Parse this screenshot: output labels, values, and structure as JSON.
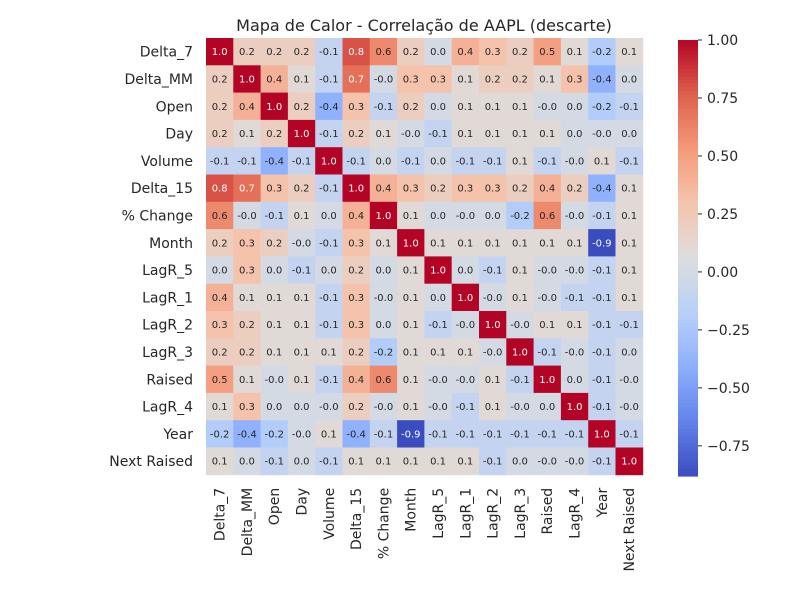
{
  "chart_data": {
    "type": "heatmap",
    "title": "Mapa de Calor - Correlação de AAPL (descarte)",
    "xlabel": "",
    "ylabel": "",
    "colormap": "coolwarm",
    "vmin": -0.88,
    "vmax": 1.0,
    "labels": [
      "Delta_7",
      "Delta_MM",
      "Open",
      "Day",
      "Volume",
      "Delta_15",
      "% Change",
      "Month",
      "LagR_5",
      "LagR_1",
      "LagR_2",
      "LagR_3",
      "Raised",
      "LagR_4",
      "Year",
      "Next Raised"
    ],
    "matrix": [
      [
        "1.0",
        "0.2",
        "0.2",
        "0.2",
        "-0.1",
        "0.8",
        "0.6",
        "0.2",
        "0.0",
        "0.4",
        "0.3",
        "0.2",
        "0.5",
        "0.1",
        "-0.2",
        "0.1"
      ],
      [
        "0.2",
        "1.0",
        "0.4",
        "0.1",
        "-0.1",
        "0.7",
        "-0.0",
        "0.3",
        "0.3",
        "0.1",
        "0.2",
        "0.2",
        "0.1",
        "0.3",
        "-0.4",
        "0.0"
      ],
      [
        "0.2",
        "0.4",
        "1.0",
        "0.2",
        "-0.4",
        "0.3",
        "-0.1",
        "0.2",
        "0.0",
        "0.1",
        "0.1",
        "0.1",
        "-0.0",
        "0.0",
        "-0.2",
        "-0.1"
      ],
      [
        "0.2",
        "0.1",
        "0.2",
        "1.0",
        "-0.1",
        "0.2",
        "0.1",
        "-0.0",
        "-0.1",
        "0.1",
        "0.1",
        "0.1",
        "0.1",
        "0.0",
        "-0.0",
        "0.0"
      ],
      [
        "-0.1",
        "-0.1",
        "-0.4",
        "-0.1",
        "1.0",
        "-0.1",
        "0.0",
        "-0.1",
        "0.0",
        "-0.1",
        "-0.1",
        "0.1",
        "-0.1",
        "-0.0",
        "0.1",
        "-0.1"
      ],
      [
        "0.8",
        "0.7",
        "0.3",
        "0.2",
        "-0.1",
        "1.0",
        "0.4",
        "0.3",
        "0.2",
        "0.3",
        "0.3",
        "0.2",
        "0.4",
        "0.2",
        "-0.4",
        "0.1"
      ],
      [
        "0.6",
        "-0.0",
        "-0.1",
        "0.1",
        "0.0",
        "0.4",
        "1.0",
        "0.1",
        "0.0",
        "-0.0",
        "0.0",
        "-0.2",
        "0.6",
        "-0.0",
        "-0.1",
        "0.1"
      ],
      [
        "0.2",
        "0.3",
        "0.2",
        "-0.0",
        "-0.1",
        "0.3",
        "0.1",
        "1.0",
        "0.1",
        "0.1",
        "0.1",
        "0.1",
        "0.1",
        "0.1",
        "-0.9",
        "0.1"
      ],
      [
        "0.0",
        "0.3",
        "0.0",
        "-0.1",
        "0.0",
        "0.2",
        "0.0",
        "0.1",
        "1.0",
        "0.0",
        "-0.1",
        "0.1",
        "-0.0",
        "-0.0",
        "-0.1",
        "0.1"
      ],
      [
        "0.4",
        "0.1",
        "0.1",
        "0.1",
        "-0.1",
        "0.3",
        "-0.0",
        "0.1",
        "0.0",
        "1.0",
        "-0.0",
        "0.1",
        "-0.0",
        "-0.1",
        "-0.1",
        "0.1"
      ],
      [
        "0.3",
        "0.2",
        "0.1",
        "0.1",
        "-0.1",
        "0.3",
        "0.0",
        "0.1",
        "-0.1",
        "-0.0",
        "1.0",
        "-0.0",
        "0.1",
        "0.1",
        "-0.1",
        "-0.1"
      ],
      [
        "0.2",
        "0.2",
        "0.1",
        "0.1",
        "0.1",
        "0.2",
        "-0.2",
        "0.1",
        "0.1",
        "0.1",
        "-0.0",
        "1.0",
        "-0.1",
        "-0.0",
        "-0.1",
        "0.0"
      ],
      [
        "0.5",
        "0.1",
        "-0.0",
        "0.1",
        "-0.1",
        "0.4",
        "0.6",
        "0.1",
        "-0.0",
        "-0.0",
        "0.1",
        "-0.1",
        "1.0",
        "0.0",
        "-0.1",
        "-0.0"
      ],
      [
        "0.1",
        "0.3",
        "0.0",
        "0.0",
        "-0.0",
        "0.2",
        "-0.0",
        "0.1",
        "-0.0",
        "-0.1",
        "0.1",
        "-0.0",
        "0.0",
        "1.0",
        "-0.1",
        "-0.0"
      ],
      [
        "-0.2",
        "-0.4",
        "-0.2",
        "-0.0",
        "0.1",
        "-0.4",
        "-0.1",
        "-0.9",
        "-0.1",
        "-0.1",
        "-0.1",
        "-0.1",
        "-0.1",
        "-0.1",
        "1.0",
        "-0.1"
      ],
      [
        "0.1",
        "0.0",
        "-0.1",
        "0.0",
        "-0.1",
        "0.1",
        "0.1",
        "0.1",
        "0.1",
        "0.1",
        "-0.1",
        "0.0",
        "-0.0",
        "-0.0",
        "-0.1",
        "1.0"
      ]
    ],
    "colorbar": {
      "ticks": [
        1.0,
        0.75,
        0.5,
        0.25,
        0.0,
        -0.25,
        -0.5,
        -0.75
      ],
      "tick_labels": [
        "1.00",
        "0.75",
        "0.50",
        "0.25",
        "0.00",
        "−0.25",
        "−0.50",
        "−0.75"
      ]
    },
    "grid": false,
    "legend": "colorbar-right"
  }
}
